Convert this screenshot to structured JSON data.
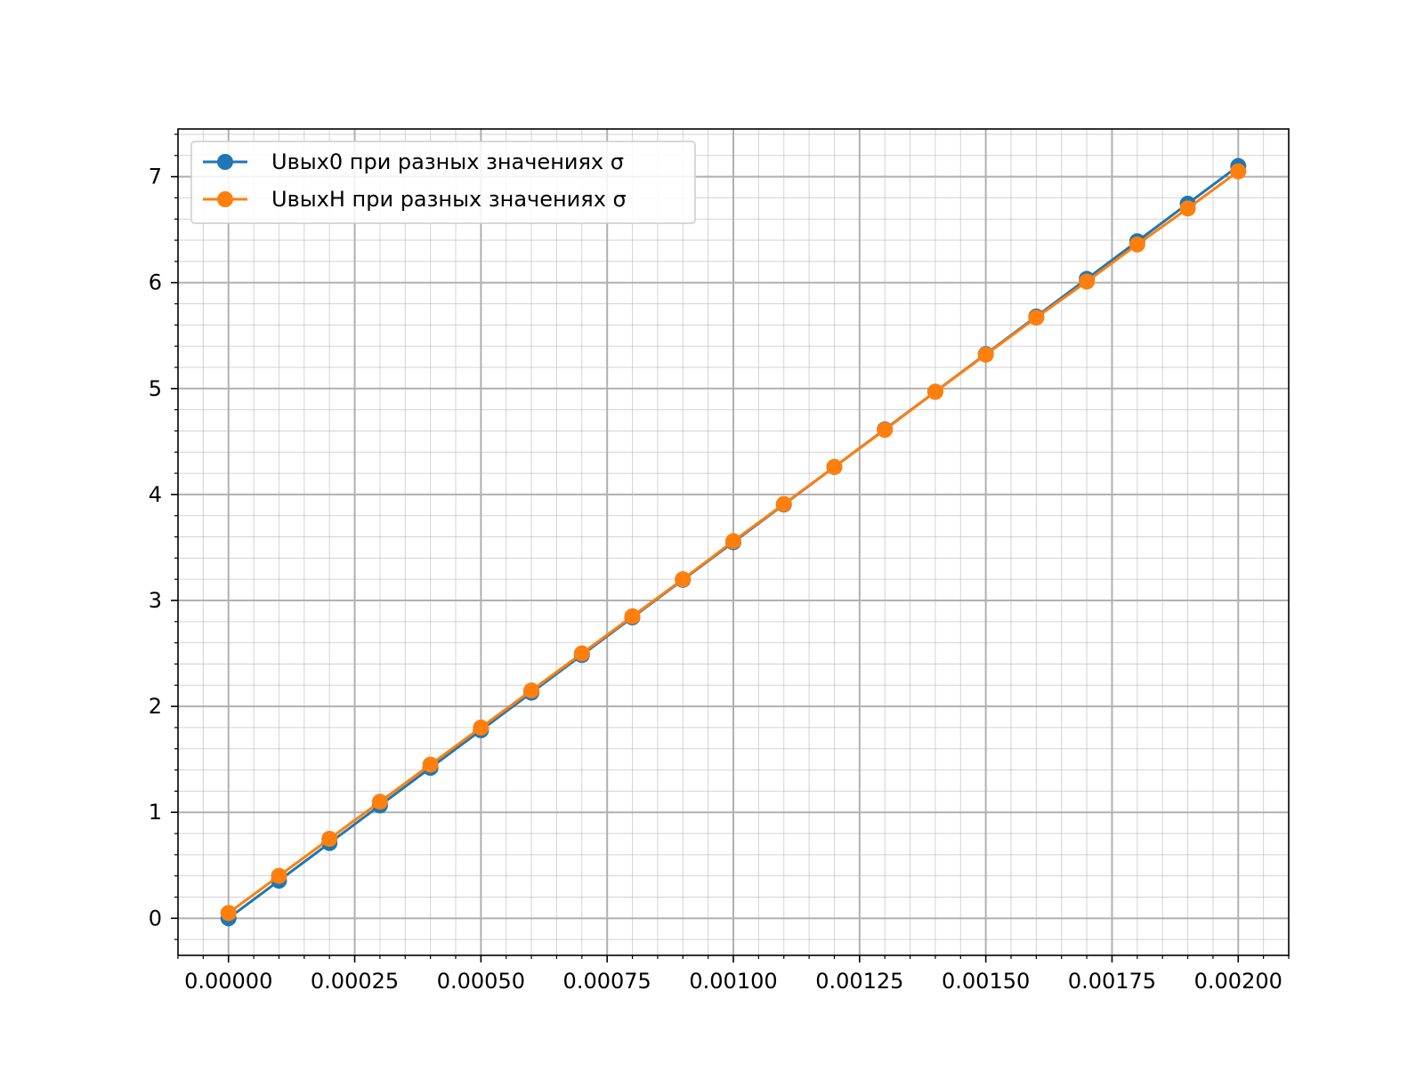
{
  "chart_data": {
    "type": "line",
    "title": "",
    "xlabel": "",
    "ylabel": "",
    "x": [
      0.0,
      0.0001,
      0.0002,
      0.0003,
      0.0004,
      0.0005,
      0.0006,
      0.0007,
      0.0008,
      0.0009,
      0.001,
      0.0011,
      0.0012,
      0.0013,
      0.0014,
      0.0015,
      0.0016,
      0.0017,
      0.0018,
      0.0019,
      0.002
    ],
    "series": [
      {
        "name": "Uвых0 при разных значениях σ",
        "color": "#1f77b4",
        "values": [
          0.0,
          0.355,
          0.71,
          1.065,
          1.42,
          1.775,
          2.13,
          2.485,
          2.84,
          3.195,
          3.55,
          3.905,
          4.26,
          4.615,
          4.97,
          5.325,
          5.68,
          6.035,
          6.39,
          6.745,
          7.1
        ]
      },
      {
        "name": "UвыхH при разных значениях σ",
        "color": "#ff7f0e",
        "values": [
          0.05,
          0.4,
          0.75,
          1.1,
          1.45,
          1.8,
          2.15,
          2.5,
          2.85,
          3.2,
          3.56,
          3.91,
          4.26,
          4.61,
          4.97,
          5.32,
          5.67,
          6.01,
          6.36,
          6.7,
          7.05
        ]
      }
    ],
    "xlim": [
      -0.0001,
      0.0021
    ],
    "ylim": [
      -0.35,
      7.45
    ],
    "xticks": [
      0.0,
      0.00025,
      0.0005,
      0.00075,
      0.001,
      0.00125,
      0.0015,
      0.00175,
      0.002
    ],
    "xtick_labels": [
      "0.00000",
      "0.00025",
      "0.00050",
      "0.00075",
      "0.00100",
      "0.00125",
      "0.00150",
      "0.00175",
      "0.00200"
    ],
    "yticks": [
      0,
      1,
      2,
      3,
      4,
      5,
      6,
      7
    ],
    "ytick_labels": [
      "0",
      "1",
      "2",
      "3",
      "4",
      "5",
      "6",
      "7"
    ],
    "grid": true,
    "minor_grid": true,
    "legend_position": "top-left",
    "grid_color": "#b0b0b0",
    "axis_color": "#000000"
  }
}
